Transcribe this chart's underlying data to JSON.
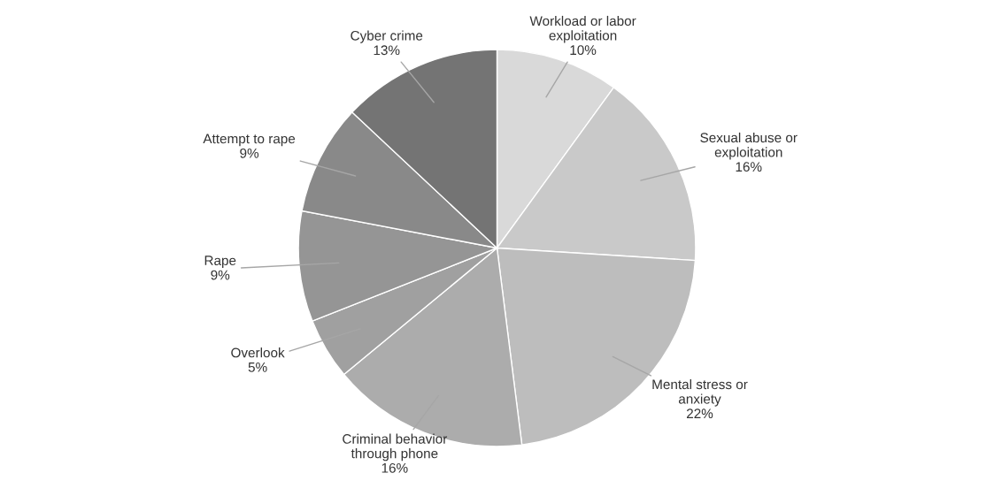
{
  "chart_data": {
    "type": "pie",
    "categories": [
      "Workload or labor\nexploitation",
      "Sexual abuse or\nexploitation",
      "Mental stress or\nanxiety",
      "Criminal behavior\nthrough phone",
      "Overlook",
      "Rape",
      "Attempt to rape",
      "Cyber crime"
    ],
    "values": [
      10,
      16,
      22,
      16,
      5,
      9,
      9,
      13
    ],
    "colors": [
      "#d9d9d9",
      "#c9c9c9",
      "#bdbdbd",
      "#acacac",
      "#a0a0a0",
      "#959595",
      "#898989",
      "#747474"
    ],
    "value_labels": [
      "10%",
      "16%",
      "22%",
      "16%",
      "5%",
      "9%",
      "9%",
      "13%"
    ],
    "legend": false
  }
}
